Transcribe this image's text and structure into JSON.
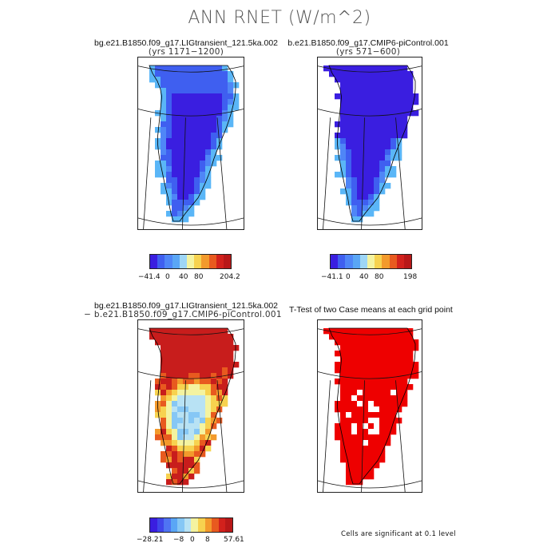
{
  "title": "ANN RNET (W/m^2)",
  "panels": [
    {
      "title": "bg.e21.B1850.f09_g17.LIGtransient_121.5ka.002",
      "subtitle": "(yrs 1171−1200)"
    },
    {
      "title": "b.e21.B1850.f09_g17.CMIP6-piControl.001",
      "subtitle": "(yrs 571−600)"
    },
    {
      "title": "bg.e21.B1850.f09_g17.LIGtransient_121.5ka.002",
      "subtitle": "− b.e21.B1850.f09_g17.CMIP6-piControl.001"
    },
    {
      "title": "T-Test of two Case means at each grid point",
      "subtitle": ""
    }
  ],
  "colorbars": [
    {
      "ticks": [
        "−41.4",
        "0",
        "40",
        "80",
        "204.2"
      ],
      "colors": [
        "#3a1ee0",
        "#3f5ff0",
        "#4f86f7",
        "#5aa6f5",
        "#9ed6f6",
        "#f4f3a0",
        "#f7d24f",
        "#f39a2c",
        "#e85a1f",
        "#d2211c",
        "#b81818"
      ]
    },
    {
      "ticks": [
        "−41.1",
        "0",
        "40",
        "80",
        "198"
      ],
      "colors": [
        "#3a1ee0",
        "#3f5ff0",
        "#4f86f7",
        "#5aa6f5",
        "#9ed6f6",
        "#f4f3a0",
        "#f7d24f",
        "#f39a2c",
        "#e85a1f",
        "#d2211c",
        "#b81818"
      ]
    },
    {
      "ticks": [
        "−28.21",
        "−8",
        "0",
        "8",
        "57.61"
      ],
      "colors": [
        "#3a1ee0",
        "#3f46ea",
        "#4f74f3",
        "#5aa6f5",
        "#86c7f5",
        "#b8e2f4",
        "#f4f3a0",
        "#f7d24f",
        "#f39a2c",
        "#e85a1f",
        "#d2211c",
        "#b81818"
      ]
    }
  ],
  "significance_note": "Cells are significant at 0.1 level",
  "chart_data": [
    {
      "type": "heatmap",
      "panel": "case1_mean",
      "variable": "ANN RNET",
      "units": "W/m^2",
      "range": [
        -41.4,
        204.2
      ],
      "description_values": {
        "interior_ice_sheet": [
          -41.4,
          -20
        ],
        "margins": [
          0,
          40
        ]
      }
    },
    {
      "type": "heatmap",
      "panel": "case2_mean",
      "variable": "ANN RNET",
      "units": "W/m^2",
      "range": [
        -41.1,
        198
      ],
      "description_values": {
        "interior_ice_sheet": [
          -41.1,
          -20
        ],
        "margins": [
          0,
          40
        ]
      }
    },
    {
      "type": "heatmap",
      "panel": "difference",
      "variable": "ANN RNET",
      "units": "W/m^2",
      "range": [
        -28.21,
        57.61
      ],
      "description_values": {
        "north_and_margins": [
          8,
          57.61
        ],
        "central_interior": [
          -8,
          8
        ]
      }
    },
    {
      "type": "heatmap",
      "panel": "t_test",
      "significance_level": 0.1,
      "significant_fraction": 0.95
    }
  ]
}
